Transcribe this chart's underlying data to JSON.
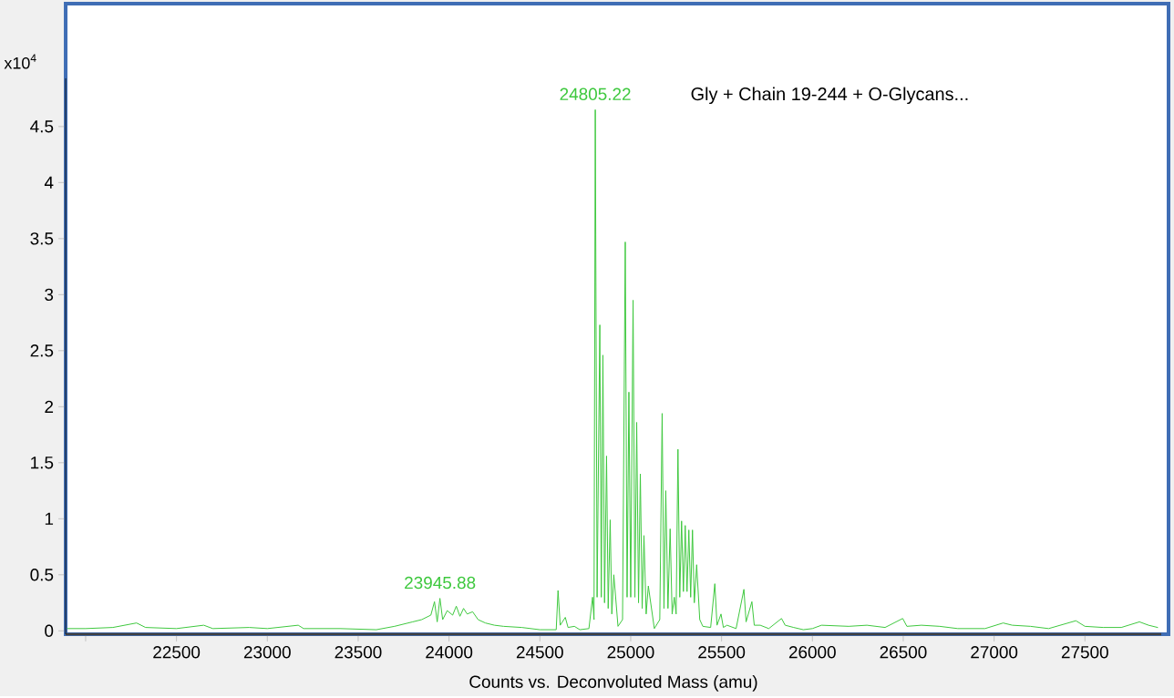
{
  "chart_data": {
    "type": "line",
    "xlabel": "Counts vs. Deconvoluted Mass (amu)",
    "ylabel": "x10$^{4}$",
    "xlim": [
      21890,
      27920
    ],
    "ylim": [
      -0.03,
      4.93
    ],
    "xticks": [
      {
        "value": 22000,
        "label": null
      },
      22500,
      23000,
      23500,
      24000,
      24500,
      25000,
      25500,
      26000,
      26500,
      27000,
      27500
    ],
    "yticks": [
      0,
      0.5,
      1,
      1.5,
      2,
      2.5,
      3,
      3.5,
      4,
      4.5
    ],
    "grid": false,
    "marker": "none",
    "line_style": "solid",
    "annotations": [
      "Gly + Chain 19-244 + O-Glycans...",
      {
        "text": "24805.22",
        "x": 24805,
        "y": 4.65
      },
      {
        "text": "23945.88",
        "x": 23950,
        "y": 0.29
      }
    ],
    "series": [
      {
        "color": "#3ec83e",
        "x": [
          21900,
          22000,
          22150,
          22280,
          22330,
          22500,
          22650,
          22700,
          22900,
          23000,
          23170,
          23200,
          23400,
          23600,
          23700,
          23800,
          23850,
          23900,
          23920,
          23935,
          23950,
          23965,
          23990,
          24020,
          24040,
          24060,
          24080,
          24100,
          24130,
          24160,
          24200,
          24250,
          24300,
          24400,
          24500,
          24590,
          24600,
          24612,
          24640,
          24655,
          24690,
          24720,
          24770,
          24790,
          24798,
          24805,
          24815,
          24830,
          24838,
          24847,
          24856,
          24867,
          24876,
          24887,
          24896,
          24907,
          24930,
          24955,
          24970,
          24980,
          24990,
          25000,
          25013,
          25023,
          25033,
          25043,
          25053,
          25063,
          25073,
          25085,
          25097,
          25130,
          25160,
          25173,
          25183,
          25193,
          25205,
          25217,
          25228,
          25240,
          25250,
          25260,
          25270,
          25280,
          25290,
          25300,
          25310,
          25320,
          25330,
          25340,
          25350,
          25363,
          25380,
          25397,
          25440,
          25463,
          25475,
          25497,
          25510,
          25530,
          25580,
          25623,
          25635,
          25667,
          25680,
          25713,
          25760,
          25830,
          25850,
          25897,
          25950,
          26000,
          26050,
          26200,
          26300,
          26400,
          26497,
          26520,
          26600,
          26700,
          26800,
          26950,
          27050,
          27100,
          27200,
          27300,
          27450,
          27500,
          27600,
          27700,
          27800,
          27850,
          27900
        ],
        "values": [
          0.02,
          0.02,
          0.03,
          0.07,
          0.03,
          0.02,
          0.05,
          0.02,
          0.03,
          0.02,
          0.05,
          0.02,
          0.02,
          0.01,
          0.04,
          0.08,
          0.1,
          0.14,
          0.26,
          0.08,
          0.29,
          0.1,
          0.18,
          0.14,
          0.22,
          0.13,
          0.2,
          0.15,
          0.17,
          0.1,
          0.07,
          0.05,
          0.04,
          0.03,
          0.01,
          0.01,
          0.36,
          0.05,
          0.12,
          0.03,
          0.04,
          0.01,
          0.02,
          0.3,
          0.1,
          4.65,
          0.3,
          2.73,
          0.3,
          2.46,
          0.25,
          1.56,
          0.2,
          0.99,
          0.15,
          0.5,
          0.04,
          0.1,
          3.47,
          0.3,
          2.13,
          0.3,
          2.95,
          0.3,
          1.86,
          0.25,
          1.4,
          0.2,
          0.85,
          0.15,
          0.4,
          0.02,
          0.1,
          1.94,
          0.2,
          1.25,
          0.2,
          0.91,
          0.15,
          0.3,
          0.15,
          1.62,
          0.3,
          0.98,
          0.35,
          0.94,
          0.35,
          0.9,
          0.3,
          0.9,
          0.25,
          0.59,
          0.1,
          0.04,
          0.03,
          0.42,
          0.05,
          0.15,
          0.03,
          0.05,
          0.02,
          0.37,
          0.08,
          0.26,
          0.05,
          0.05,
          0.02,
          0.11,
          0.05,
          0.03,
          0.01,
          0.02,
          0.05,
          0.04,
          0.05,
          0.03,
          0.11,
          0.04,
          0.05,
          0.04,
          0.02,
          0.02,
          0.07,
          0.05,
          0.04,
          0.02,
          0.09,
          0.04,
          0.03,
          0.03,
          0.08,
          0.05,
          0.03
        ]
      }
    ]
  }
}
